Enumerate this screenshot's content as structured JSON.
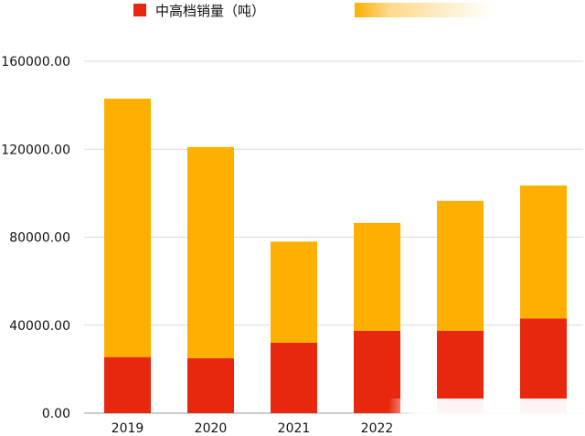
{
  "chart_data": {
    "type": "bar",
    "stacked": true,
    "categories": [
      "2019",
      "2020",
      "2021",
      "2022",
      "",
      ""
    ],
    "series": [
      {
        "name": "中高档销量（吨）",
        "color": "#e8270f",
        "values": [
          25500,
          25000,
          32000,
          37500,
          37500,
          43000
        ]
      },
      {
        "name": "",
        "color": "#fdb000",
        "values": [
          117500,
          96000,
          46000,
          49000,
          59000,
          60500
        ]
      }
    ],
    "yticks": [
      "0.00",
      "40000.00",
      "80000.00",
      "120000.00",
      "160000.00"
    ],
    "ylim": [
      0,
      160000
    ],
    "grid": true,
    "legend": "top"
  }
}
